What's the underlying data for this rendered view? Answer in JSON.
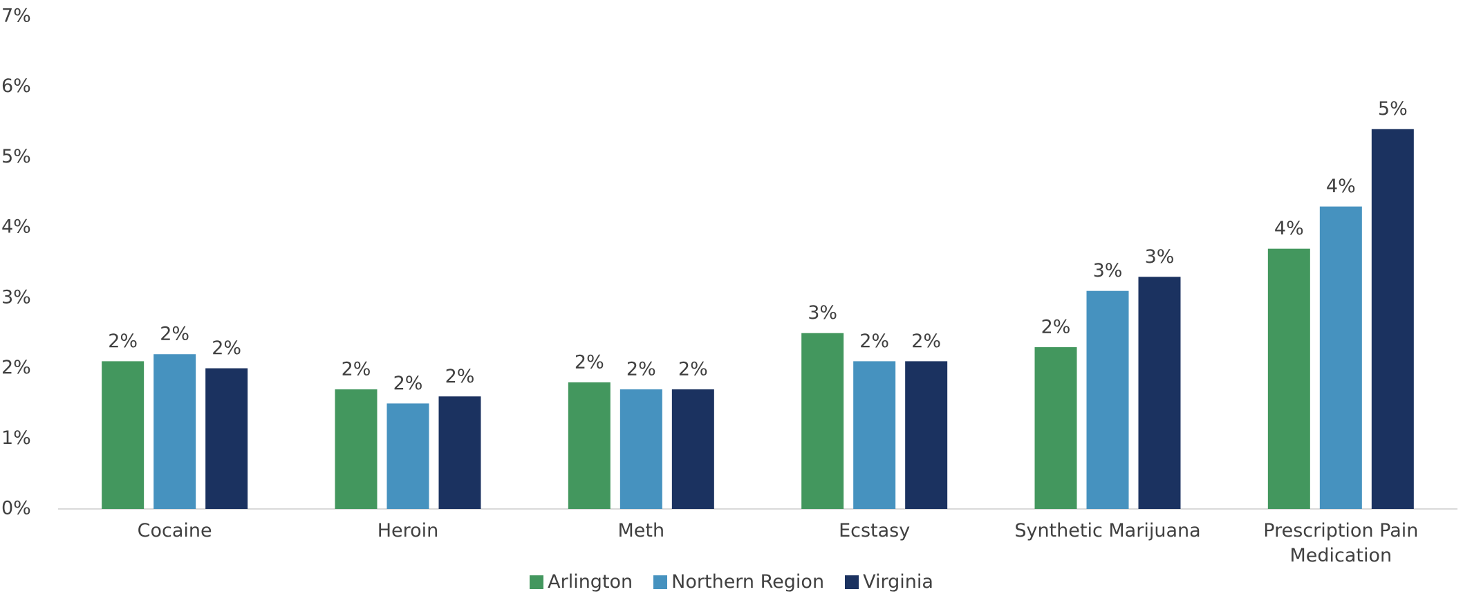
{
  "chart_data": {
    "type": "bar",
    "categories": [
      "Cocaine",
      "Heroin",
      "Meth",
      "Ecstasy",
      "Synthetic Marijuana",
      "Prescription Pain Medication"
    ],
    "series": [
      {
        "name": "Arlington",
        "color": "#43975e",
        "values": [
          2.1,
          1.7,
          1.8,
          2.5,
          2.3,
          3.7
        ],
        "value_labels": [
          "2%",
          "2%",
          "2%",
          "3%",
          "2%",
          "4%"
        ]
      },
      {
        "name": "Northern Region",
        "color": "#4692bf",
        "values": [
          2.2,
          1.5,
          1.7,
          2.1,
          3.1,
          4.3
        ],
        "value_labels": [
          "2%",
          "2%",
          "2%",
          "2%",
          "3%",
          "4%"
        ]
      },
      {
        "name": "Virginia",
        "color": "#1b3260",
        "values": [
          2.0,
          1.6,
          1.7,
          2.1,
          3.3,
          5.4
        ],
        "value_labels": [
          "2%",
          "2%",
          "2%",
          "2%",
          "3%",
          "5%"
        ]
      }
    ],
    "ylim": [
      0,
      7
    ],
    "yticks": [
      {
        "value": 0,
        "label": "0%"
      },
      {
        "value": 1,
        "label": "1%"
      },
      {
        "value": 2,
        "label": "2%"
      },
      {
        "value": 3,
        "label": "3%"
      },
      {
        "value": 4,
        "label": "4%"
      },
      {
        "value": 5,
        "label": "5%"
      },
      {
        "value": 6,
        "label": "6%"
      },
      {
        "value": 7,
        "label": "7%"
      }
    ],
    "grid": false,
    "legend": "bottom"
  }
}
